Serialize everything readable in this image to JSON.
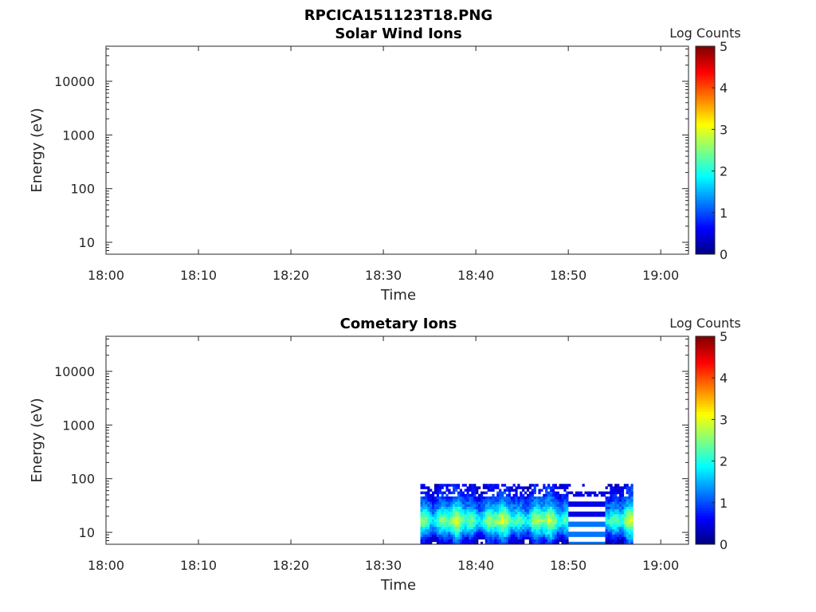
{
  "figure_title": "RPCICA151123T18.PNG",
  "chart_data": [
    {
      "type": "heatmap",
      "title": "Solar Wind Ions",
      "xlabel": "Time",
      "ylabel": "Energy (eV)",
      "x_ticks": [
        "18:00",
        "18:10",
        "18:20",
        "18:30",
        "18:40",
        "18:50",
        "19:00"
      ],
      "x_range": [
        "18:00",
        "19:03"
      ],
      "y_scale": "log",
      "y_ticks": [
        "10",
        "100",
        "1000",
        "10000"
      ],
      "y_range": [
        6,
        45000
      ],
      "colorbar": {
        "label": "Log Counts",
        "ticks": [
          "0",
          "1",
          "2",
          "3",
          "4",
          "5"
        ],
        "range": [
          0,
          5
        ],
        "colormap": "jet"
      },
      "data": []
    },
    {
      "type": "heatmap",
      "title": "Cometary Ions",
      "xlabel": "Time",
      "ylabel": "Energy (eV)",
      "x_ticks": [
        "18:00",
        "18:10",
        "18:20",
        "18:30",
        "18:40",
        "18:50",
        "19:00"
      ],
      "x_range": [
        "18:00",
        "19:03"
      ],
      "y_scale": "log",
      "y_ticks": [
        "10",
        "100",
        "1000",
        "10000"
      ],
      "y_range": [
        6,
        45000
      ],
      "colorbar": {
        "label": "Log Counts",
        "ticks": [
          "0",
          "1",
          "2",
          "3",
          "4",
          "5"
        ],
        "range": [
          0,
          5
        ],
        "colormap": "jet"
      },
      "data_extent": {
        "time_start": "18:34",
        "time_end": "18:57",
        "energy_min_eV": 6,
        "energy_max_eV": 80
      },
      "gap": {
        "time_start": "18:50",
        "time_end": "18:54"
      },
      "energy_profile": [
        {
          "energy_eV": 7,
          "log_counts": 0.6
        },
        {
          "energy_eV": 9,
          "log_counts": 1.2
        },
        {
          "energy_eV": 12,
          "log_counts": 1.8
        },
        {
          "energy_eV": 16,
          "log_counts": 2.5
        },
        {
          "energy_eV": 20,
          "log_counts": 2.2
        },
        {
          "energy_eV": 25,
          "log_counts": 1.7
        },
        {
          "energy_eV": 32,
          "log_counts": 1.3
        },
        {
          "energy_eV": 40,
          "log_counts": 1.0
        },
        {
          "energy_eV": 50,
          "log_counts": 0.8
        },
        {
          "energy_eV": 63,
          "log_counts": 0.6
        },
        {
          "energy_eV": 78,
          "log_counts": 0.5
        }
      ]
    }
  ]
}
